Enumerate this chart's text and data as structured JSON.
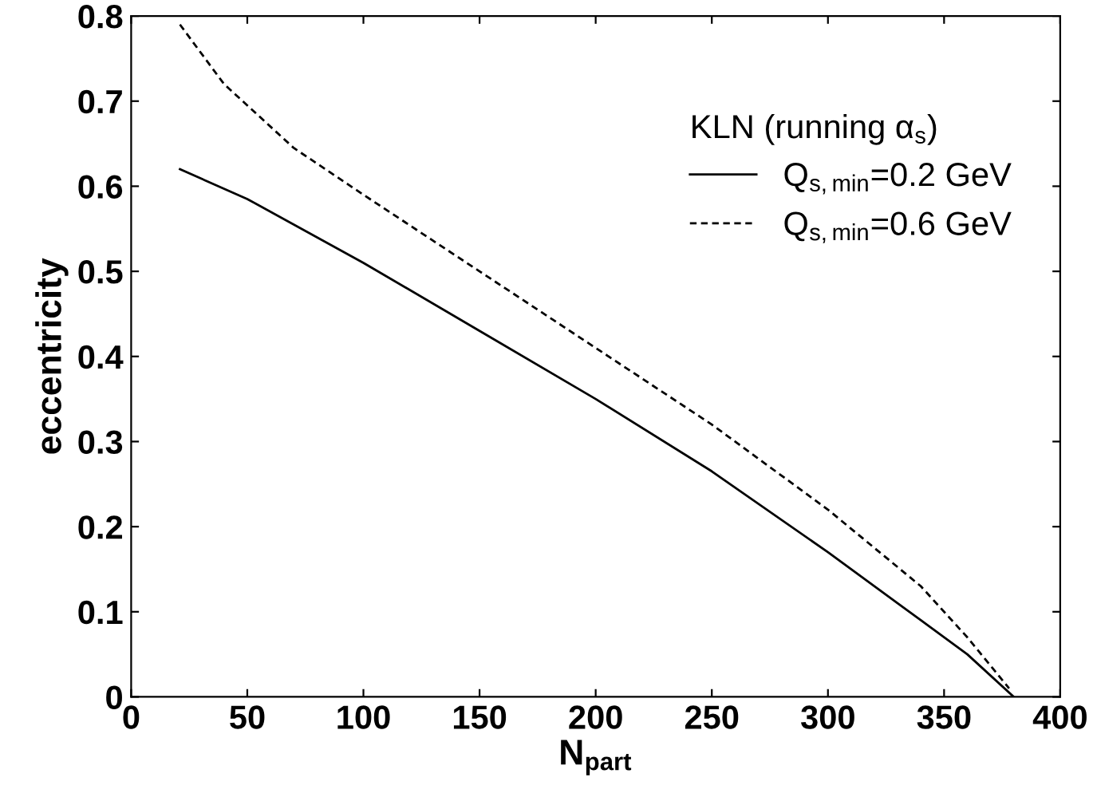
{
  "chart_data": {
    "type": "line",
    "xlabel": "N$_{part}$",
    "ylabel": "eccentricity",
    "legend_title": "KLN (running α$_{s}$)",
    "xlim": [
      0,
      400
    ],
    "ylim": [
      0,
      0.8
    ],
    "xticks": [
      0,
      50,
      100,
      150,
      200,
      250,
      300,
      350,
      400
    ],
    "yticks": [
      0,
      0.1,
      0.2,
      0.3,
      0.4,
      0.5,
      0.6,
      0.7,
      0.8
    ],
    "grid": false,
    "legend": "top right",
    "marker": "none",
    "series": [
      {
        "name": "Q$_{s,min}$=0.2 GeV",
        "color": "#000000",
        "line_style": "solid",
        "x": [
          21,
          50,
          100,
          150,
          200,
          250,
          300,
          340,
          360,
          380
        ],
        "values": [
          0.62,
          0.585,
          0.51,
          0.43,
          0.35,
          0.265,
          0.17,
          0.09,
          0.05,
          0.0
        ]
      },
      {
        "name": "Q$_{s,min}$=0.6 GeV",
        "color": "#000000",
        "line_style": "dashed",
        "x": [
          21,
          40,
          70,
          100,
          150,
          200,
          250,
          300,
          340,
          360,
          378
        ],
        "values": [
          0.79,
          0.72,
          0.645,
          0.59,
          0.5,
          0.41,
          0.32,
          0.22,
          0.13,
          0.07,
          0.01
        ]
      }
    ]
  }
}
